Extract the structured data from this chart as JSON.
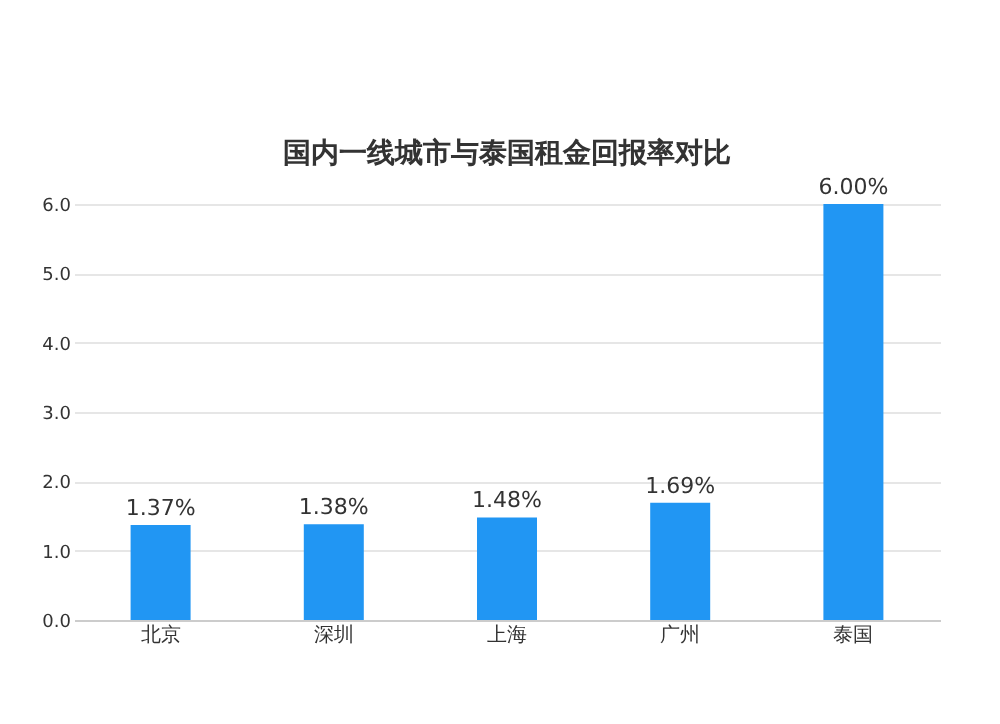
{
  "chart_data": {
    "type": "bar",
    "title": "国内一线城市与泰国租金回报率对比",
    "categories": [
      "北京",
      "深圳",
      "上海",
      "广州",
      "泰国"
    ],
    "values": [
      1.37,
      1.38,
      1.48,
      1.69,
      6.0
    ],
    "value_labels": [
      "1.37%",
      "1.38%",
      "1.48%",
      "1.69%",
      "6.00%"
    ],
    "color": "#2196f3",
    "ylim": [
      0,
      6
    ],
    "yticks": [
      {
        "value": 0,
        "label": "0.0"
      },
      {
        "value": 1,
        "label": "1.0"
      },
      {
        "value": 2,
        "label": "2.0"
      },
      {
        "value": 3,
        "label": "3.0"
      },
      {
        "value": 4,
        "label": "4.0"
      },
      {
        "value": 5,
        "label": "5.0"
      },
      {
        "value": 6,
        "label": "6.0"
      }
    ],
    "grid": "y"
  }
}
